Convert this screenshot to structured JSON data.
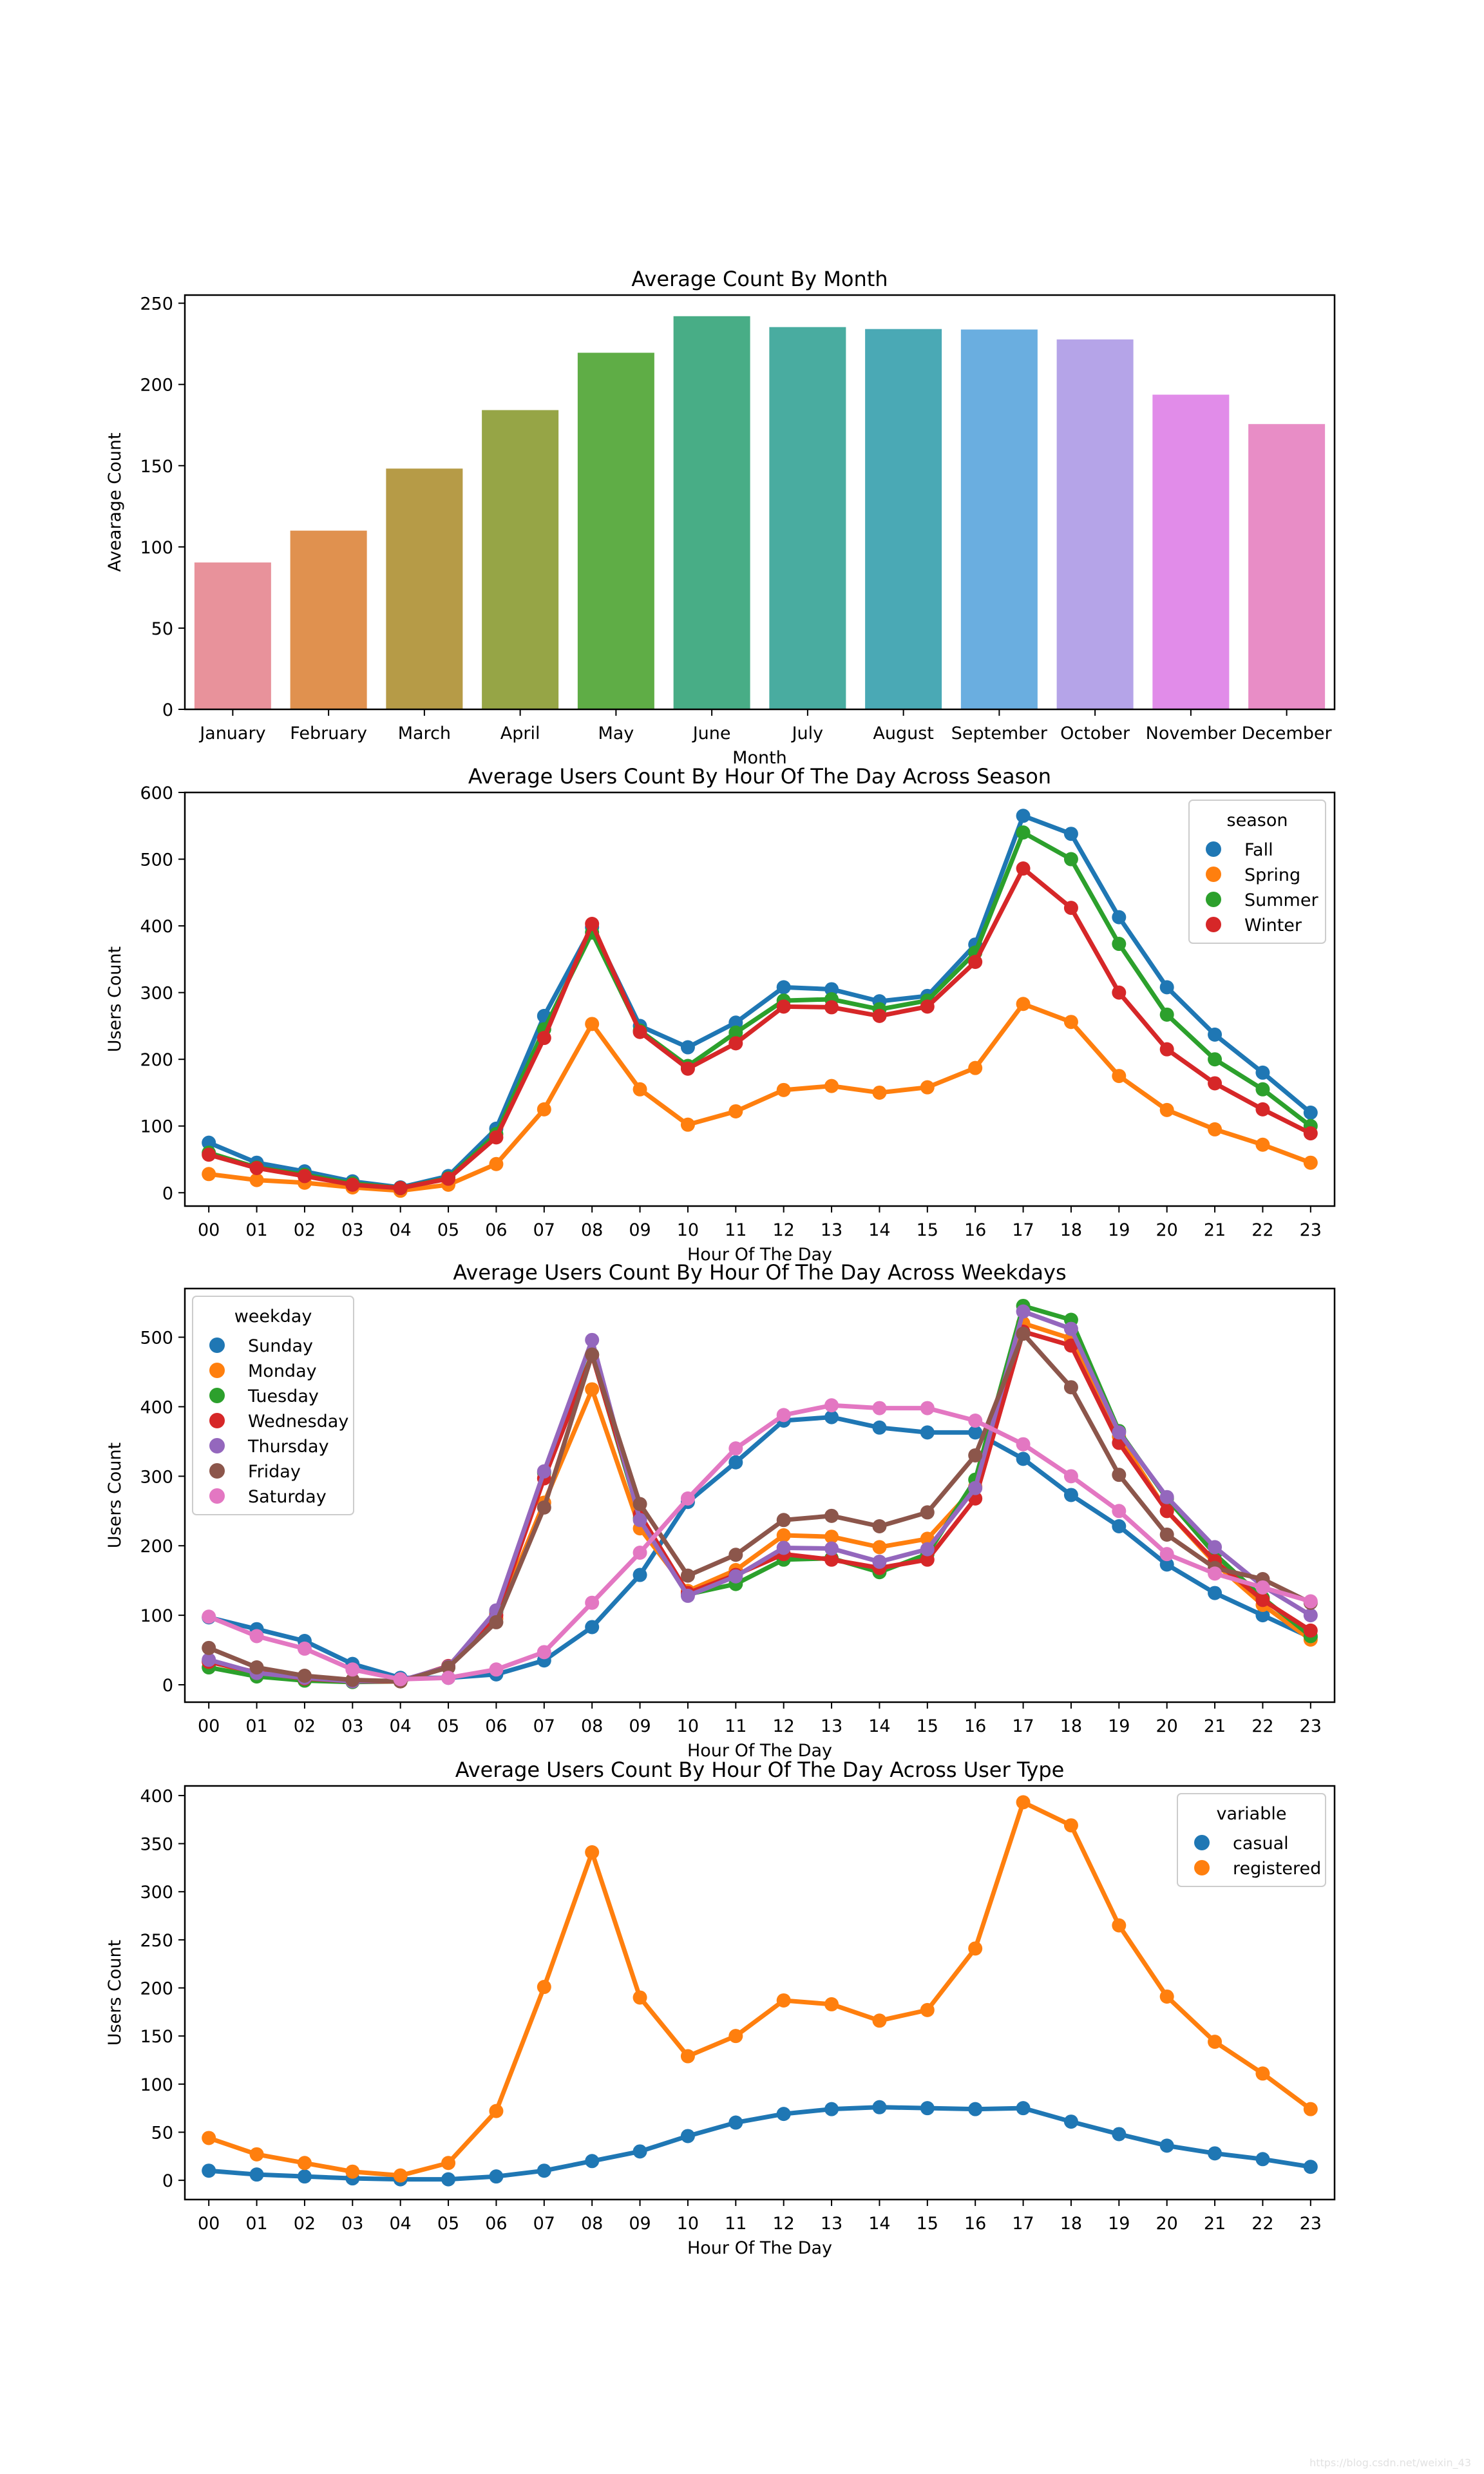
{
  "watermark": "https://blog.csdn.net/weixin_43",
  "chart_data": [
    {
      "type": "bar",
      "title": "Average Count By Month",
      "xlabel": "Month",
      "ylabel": "Avearage Count",
      "ylim": [
        0,
        255
      ],
      "yticks": [
        0,
        50,
        100,
        150,
        200,
        250
      ],
      "grid": false,
      "categories": [
        "January",
        "February",
        "March",
        "April",
        "May",
        "June",
        "July",
        "August",
        "September",
        "October",
        "November",
        "December"
      ],
      "values": [
        90.4,
        110.0,
        148.2,
        184.2,
        219.5,
        242.0,
        235.3,
        234.1,
        233.8,
        227.7,
        193.7,
        175.6
      ],
      "colors": [
        "#e8929b",
        "#e0914f",
        "#b69b47",
        "#96a546",
        "#5fad46",
        "#48ad86",
        "#49aca0",
        "#4aa9b5",
        "#6aaee0",
        "#b5a4e8",
        "#e18ce9",
        "#e88dc6"
      ]
    },
    {
      "type": "line",
      "title": "Average Users Count By Hour Of The Day Across Season",
      "xlabel": "Hour Of The Day",
      "ylabel": "Users Count",
      "ylim": [
        -20,
        600
      ],
      "yticks": [
        0,
        100,
        200,
        300,
        400,
        500,
        600
      ],
      "grid": false,
      "legend_title": "season",
      "legend_position": "top-right",
      "x": [
        "00",
        "01",
        "02",
        "03",
        "04",
        "05",
        "06",
        "07",
        "08",
        "09",
        "10",
        "11",
        "12",
        "13",
        "14",
        "15",
        "16",
        "17",
        "18",
        "19",
        "20",
        "21",
        "22",
        "23"
      ],
      "series": [
        {
          "name": "Fall",
          "color": "#1f77b4",
          "values": [
            75,
            45,
            32,
            17,
            8,
            25,
            96,
            265,
            398,
            250,
            218,
            255,
            308,
            305,
            287,
            295,
            372,
            565,
            538,
            413,
            308,
            237,
            180,
            120
          ]
        },
        {
          "name": "Spring",
          "color": "#ff7f0e",
          "values": [
            28,
            19,
            15,
            8,
            3,
            12,
            43,
            125,
            253,
            155,
            102,
            122,
            154,
            160,
            150,
            158,
            187,
            283,
            256,
            175,
            124,
            95,
            72,
            45
          ]
        },
        {
          "name": "Summer",
          "color": "#2ca02c",
          "values": [
            60,
            38,
            27,
            14,
            7,
            22,
            88,
            245,
            390,
            243,
            190,
            240,
            288,
            290,
            275,
            288,
            360,
            540,
            500,
            373,
            267,
            200,
            155,
            100
          ]
        },
        {
          "name": "Winter",
          "color": "#d62728",
          "values": [
            57,
            37,
            25,
            12,
            7,
            21,
            83,
            232,
            403,
            241,
            186,
            224,
            279,
            278,
            265,
            279,
            346,
            486,
            427,
            300,
            215,
            164,
            125,
            89
          ]
        }
      ]
    },
    {
      "type": "line",
      "title": "Average Users Count By Hour Of The Day Across Weekdays",
      "xlabel": "Hour Of The Day",
      "ylabel": "Users Count",
      "ylim": [
        -25,
        570
      ],
      "yticks": [
        0,
        100,
        200,
        300,
        400,
        500
      ],
      "grid": false,
      "legend_title": "weekday",
      "legend_position": "top-left",
      "x": [
        "00",
        "01",
        "02",
        "03",
        "04",
        "05",
        "06",
        "07",
        "08",
        "09",
        "10",
        "11",
        "12",
        "13",
        "14",
        "15",
        "16",
        "17",
        "18",
        "19",
        "20",
        "21",
        "22",
        "23"
      ],
      "series": [
        {
          "name": "Sunday",
          "color": "#1f77b4",
          "values": [
            97,
            80,
            63,
            30,
            10,
            10,
            15,
            35,
            83,
            158,
            263,
            320,
            380,
            385,
            370,
            363,
            363,
            325,
            273,
            228,
            173,
            132,
            100,
            68
          ]
        },
        {
          "name": "Monday",
          "color": "#ff7f0e",
          "values": [
            34,
            15,
            8,
            5,
            5,
            25,
            95,
            262,
            425,
            225,
            135,
            165,
            215,
            213,
            198,
            210,
            285,
            520,
            498,
            357,
            250,
            175,
            115,
            65
          ]
        },
        {
          "name": "Tuesday",
          "color": "#2ca02c",
          "values": [
            25,
            12,
            6,
            4,
            5,
            25,
            105,
            305,
            475,
            240,
            130,
            145,
            180,
            182,
            162,
            188,
            295,
            545,
            525,
            365,
            268,
            188,
            125,
            70
          ]
        },
        {
          "name": "Wednesday",
          "color": "#d62728",
          "values": [
            33,
            18,
            9,
            5,
            5,
            27,
            100,
            297,
            474,
            245,
            132,
            158,
            188,
            180,
            168,
            180,
            268,
            508,
            488,
            348,
            250,
            178,
            122,
            78
          ]
        },
        {
          "name": "Thursday",
          "color": "#9467bd",
          "values": [
            36,
            17,
            10,
            5,
            6,
            26,
            107,
            307,
            496,
            237,
            128,
            156,
            197,
            196,
            177,
            195,
            283,
            537,
            512,
            363,
            270,
            198,
            142,
            100
          ]
        },
        {
          "name": "Friday",
          "color": "#8c564b",
          "values": [
            53,
            25,
            13,
            7,
            5,
            25,
            90,
            255,
            475,
            260,
            157,
            187,
            237,
            243,
            228,
            248,
            330,
            505,
            428,
            302,
            216,
            168,
            152,
            118
          ]
        },
        {
          "name": "Saturday",
          "color": "#e377c2",
          "values": [
            98,
            70,
            52,
            22,
            8,
            10,
            22,
            47,
            118,
            190,
            268,
            340,
            388,
            402,
            398,
            398,
            380,
            346,
            300,
            250,
            188,
            160,
            140,
            120
          ]
        }
      ]
    },
    {
      "type": "line",
      "title": "Average Users Count By Hour Of The Day Across User Type",
      "xlabel": "Hour Of The Day",
      "ylabel": "Users Count",
      "ylim": [
        -20,
        410
      ],
      "yticks": [
        0,
        50,
        100,
        150,
        200,
        250,
        300,
        350,
        400
      ],
      "grid": false,
      "legend_title": "variable",
      "legend_position": "top-right",
      "x": [
        "00",
        "01",
        "02",
        "03",
        "04",
        "05",
        "06",
        "07",
        "08",
        "09",
        "10",
        "11",
        "12",
        "13",
        "14",
        "15",
        "16",
        "17",
        "18",
        "19",
        "20",
        "21",
        "22",
        "23"
      ],
      "series": [
        {
          "name": "casual",
          "color": "#1f77b4",
          "values": [
            10,
            6,
            4,
            2,
            1,
            1,
            4,
            10,
            20,
            30,
            46,
            60,
            69,
            74,
            76,
            75,
            74,
            75,
            61,
            48,
            36,
            28,
            22,
            14
          ]
        },
        {
          "name": "registered",
          "color": "#ff7f0e",
          "values": [
            44,
            27,
            18,
            9,
            5,
            18,
            72,
            201,
            341,
            190,
            129,
            150,
            187,
            183,
            166,
            177,
            241,
            393,
            369,
            265,
            191,
            144,
            111,
            74
          ]
        }
      ]
    }
  ]
}
